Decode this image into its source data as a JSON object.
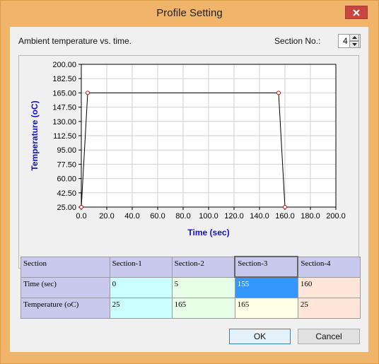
{
  "window": {
    "title": "Profile Setting"
  },
  "header": {
    "chart_caption": "Ambient temperature vs. time.",
    "section_no_label": "Section No.:",
    "section_no_value": "4"
  },
  "chart_data": {
    "type": "line",
    "xlabel": "Time (sec)",
    "ylabel": "Temperature (oC)",
    "xlim": [
      0.0,
      200.0
    ],
    "ylim": [
      25.0,
      200.0
    ],
    "x_ticks": [
      "0.0",
      "20.0",
      "40.0",
      "60.0",
      "80.0",
      "100.0",
      "120.0",
      "140.0",
      "160.0",
      "180.0",
      "200.0"
    ],
    "y_ticks": [
      "200.00",
      "182.50",
      "165.00",
      "147.50",
      "130.00",
      "112.50",
      "95.00",
      "77.50",
      "60.00",
      "42.50",
      "25.00"
    ],
    "grid": true,
    "series": [
      {
        "x": [
          0,
          5,
          155,
          160
        ],
        "y": [
          25,
          165,
          165,
          25
        ]
      }
    ]
  },
  "table": {
    "headers": [
      "Section",
      "Section-1",
      "Section-2",
      "Section-3",
      "Section-4"
    ],
    "rows": [
      {
        "label": "Time (sec)",
        "values": [
          "0",
          "5",
          "155",
          "160"
        ]
      },
      {
        "label": "Temperature (oC)",
        "values": [
          "25",
          "165",
          "165",
          "25"
        ]
      }
    ]
  },
  "buttons": {
    "ok": "OK",
    "cancel": "Cancel"
  },
  "colors": {
    "axis_label": "#1010cc",
    "point_marker": "#cc0000",
    "selected_cell": "#3397ff"
  }
}
